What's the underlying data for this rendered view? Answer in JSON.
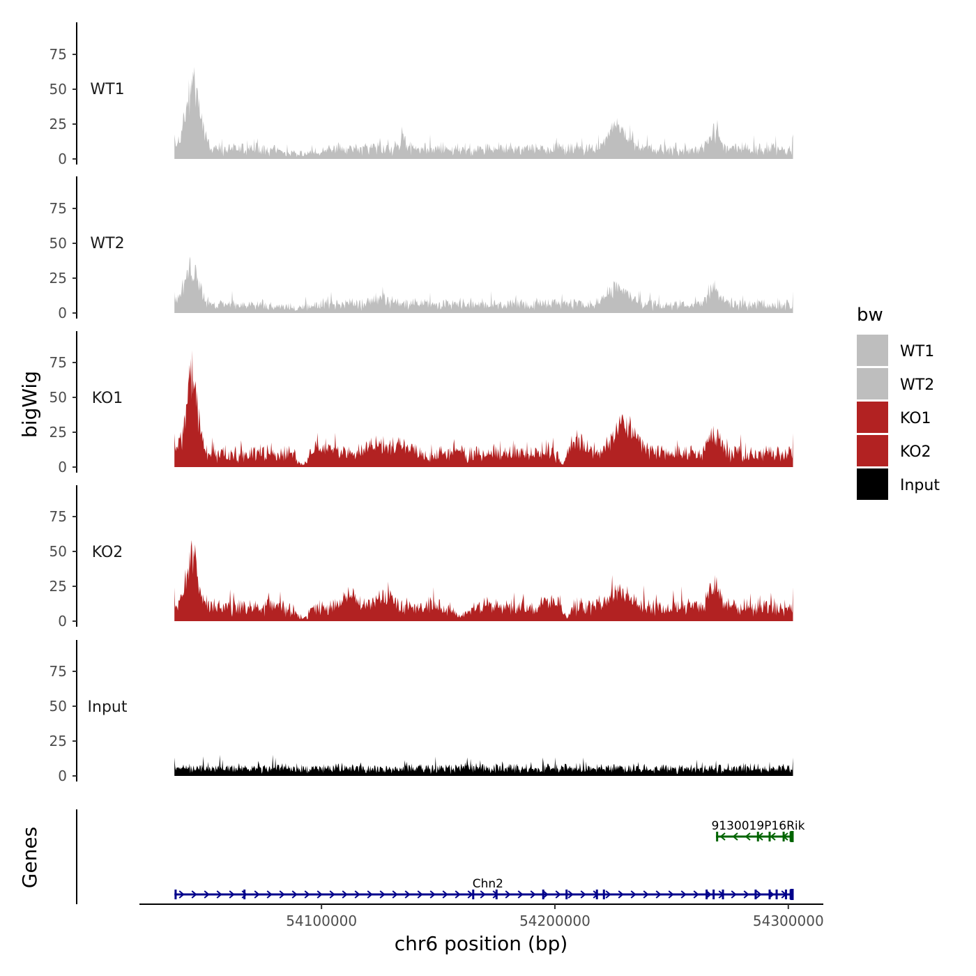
{
  "chart_data": {
    "type": "area",
    "title": "",
    "chromosome": "chr6",
    "xlabel": "chr6 position (bp)",
    "ylabel": "bigWig",
    "genes_axis_label": "Genes",
    "xlim": [
      54022000,
      54315000
    ],
    "data_range": [
      54037000,
      54302000
    ],
    "ylim": [
      0,
      97
    ],
    "yticks": [
      0,
      25,
      50,
      75
    ],
    "xticks": [
      54100000,
      54200000,
      54300000
    ],
    "xtick_labels": [
      "54100000",
      "54200000",
      "54300000"
    ],
    "legend": {
      "title": "bw",
      "placement": "right",
      "entries": [
        {
          "name": "WT1",
          "color": "#bebebe"
        },
        {
          "name": "WT2",
          "color": "#bebebe"
        },
        {
          "name": "KO1",
          "color": "#b22222"
        },
        {
          "name": "KO2",
          "color": "#b22222"
        },
        {
          "name": "Input",
          "color": "#000000"
        }
      ]
    },
    "series": [
      {
        "name": "WT1",
        "color": "#bebebe",
        "baseline": 8,
        "noise": 4,
        "peaks": [
          {
            "x": 54045000,
            "height": 55,
            "width": 3000
          },
          {
            "x": 54227000,
            "height": 17,
            "width": 4500
          },
          {
            "x": 54268000,
            "height": 14,
            "width": 2500
          },
          {
            "x": 54135000,
            "height": 8,
            "width": 1000
          }
        ],
        "dips": [
          {
            "x": 54091000,
            "width": 6000,
            "depth": 0.5
          }
        ]
      },
      {
        "name": "WT2",
        "color": "#bebebe",
        "baseline": 7,
        "noise": 4,
        "peaks": [
          {
            "x": 54044500,
            "height": 33,
            "width": 3000
          },
          {
            "x": 54227000,
            "height": 14,
            "width": 4500
          },
          {
            "x": 54268000,
            "height": 14,
            "width": 2500
          },
          {
            "x": 54125000,
            "height": 7,
            "width": 3000
          }
        ],
        "dips": [
          {
            "x": 54088000,
            "width": 6000,
            "depth": 0.5
          }
        ]
      },
      {
        "name": "KO1",
        "color": "#b22222",
        "baseline": 11,
        "noise": 5,
        "peaks": [
          {
            "x": 54044500,
            "height": 60,
            "width": 2500
          },
          {
            "x": 54230000,
            "height": 24,
            "width": 5000
          },
          {
            "x": 54268000,
            "height": 16,
            "width": 2500
          },
          {
            "x": 54123000,
            "height": 9,
            "width": 3500
          },
          {
            "x": 54134000,
            "height": 9,
            "width": 3500
          },
          {
            "x": 54100000,
            "height": 6,
            "width": 4000
          },
          {
            "x": 54210000,
            "height": 10,
            "width": 4000
          }
        ],
        "dips": [
          {
            "x": 54092000,
            "width": 2000,
            "depth": 0.8
          },
          {
            "x": 54203000,
            "width": 1500,
            "depth": 0.8
          }
        ]
      },
      {
        "name": "KO2",
        "color": "#b22222",
        "baseline": 11,
        "noise": 5,
        "peaks": [
          {
            "x": 54044500,
            "height": 45,
            "width": 2500
          },
          {
            "x": 54227000,
            "height": 14,
            "width": 5000
          },
          {
            "x": 54268000,
            "height": 17,
            "width": 2500
          },
          {
            "x": 54112000,
            "height": 11,
            "width": 3500
          },
          {
            "x": 54128000,
            "height": 10,
            "width": 3500
          },
          {
            "x": 54200000,
            "height": 7,
            "width": 4000
          }
        ],
        "dips": [
          {
            "x": 54092000,
            "width": 2500,
            "depth": 0.8
          },
          {
            "x": 54160000,
            "width": 2500,
            "depth": 0.7
          },
          {
            "x": 54205000,
            "width": 1500,
            "depth": 0.8
          }
        ]
      },
      {
        "name": "Input",
        "color": "#000000",
        "baseline": 6,
        "noise": 3,
        "peaks": [],
        "dips": []
      }
    ],
    "genes": [
      {
        "name": "Chn2",
        "strand": "+",
        "start": 54037000,
        "end": 54302000,
        "color": "#00008b",
        "exons": [
          54037500,
          54067000,
          54165000,
          54175000,
          54195000,
          54205000,
          54218000,
          54221000,
          54265000,
          54268000,
          54272000,
          54286000,
          54292000,
          54295000,
          54299000,
          54301000
        ]
      },
      {
        "name": "9130019P16Rik",
        "strand": "-",
        "start": 54269000,
        "end": 54302000,
        "color": "#006400",
        "exons": [
          54269500,
          54287000,
          54292000,
          54298000,
          54301000
        ]
      }
    ]
  }
}
